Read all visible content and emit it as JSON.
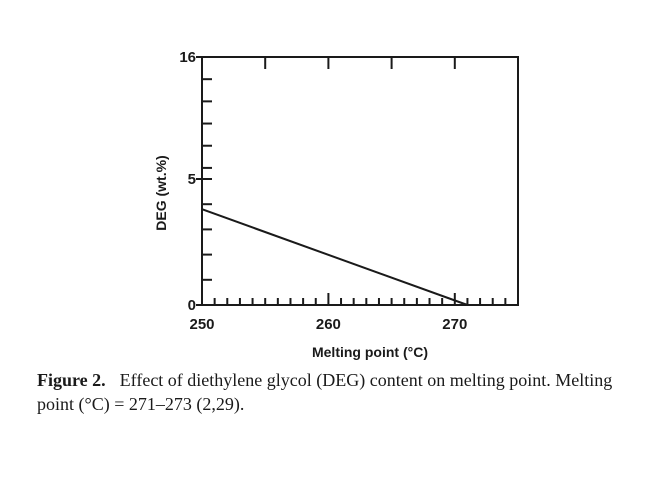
{
  "chart_data": {
    "type": "line",
    "xlabel": "Melting point (°C)",
    "ylabel": "DEG (wt.%)",
    "xlim": [
      250,
      275
    ],
    "ylim": [
      0,
      16
    ],
    "x_ticks": [
      250,
      260,
      270
    ],
    "y_ticks": [
      0,
      5,
      16
    ],
    "grid": false,
    "series": [
      {
        "x": [
          250,
          271
        ],
        "y": [
          3.8,
          0
        ]
      }
    ]
  },
  "caption": {
    "label": "Figure 2.",
    "text": "Effect of diethylene glycol (DEG) content on melting point. Melting point (°C) = 271–273 (2,29)."
  }
}
